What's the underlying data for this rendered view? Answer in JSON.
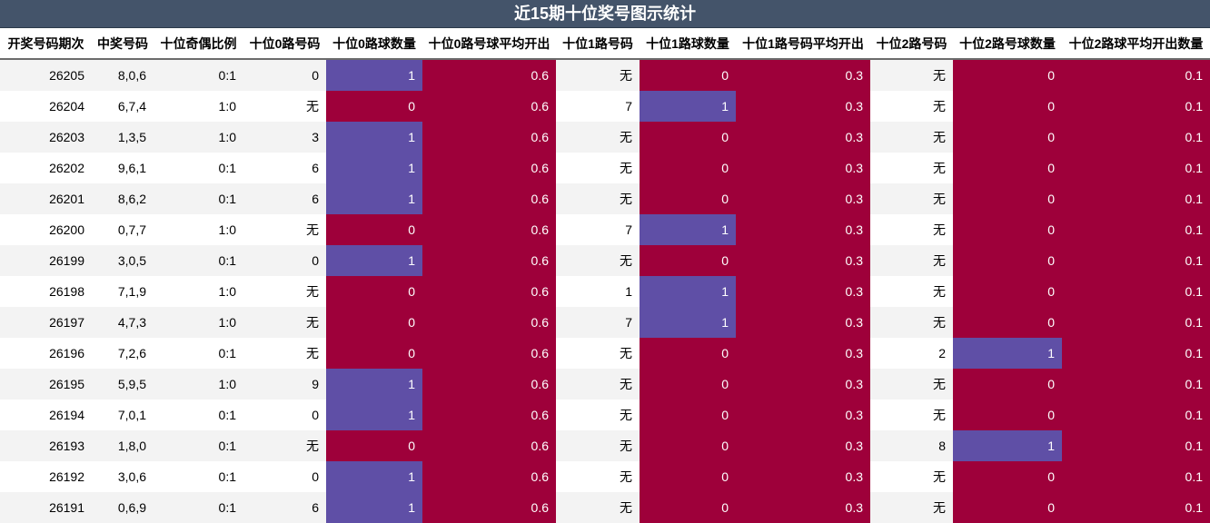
{
  "title": "近15期十位奖号图示统计",
  "headers": [
    "开奖号码期次",
    "中奖号码",
    "十位奇偶比例",
    "十位0路号码",
    "十位0路球数量",
    "十位0路号球平均开出",
    "十位1路号码",
    "十位1路球数量",
    "十位1路号码平均开出",
    "十位2路号码",
    "十位2路号球数量",
    "十位2路球平均开出数量"
  ],
  "rows": [
    [
      "26205",
      "8,0,6",
      "0:1",
      "0",
      "1",
      "0.6",
      "无",
      "0",
      "0.3",
      "无",
      "0",
      "0.1"
    ],
    [
      "26204",
      "6,7,4",
      "1:0",
      "无",
      "0",
      "0.6",
      "7",
      "1",
      "0.3",
      "无",
      "0",
      "0.1"
    ],
    [
      "26203",
      "1,3,5",
      "1:0",
      "3",
      "1",
      "0.6",
      "无",
      "0",
      "0.3",
      "无",
      "0",
      "0.1"
    ],
    [
      "26202",
      "9,6,1",
      "0:1",
      "6",
      "1",
      "0.6",
      "无",
      "0",
      "0.3",
      "无",
      "0",
      "0.1"
    ],
    [
      "26201",
      "8,6,2",
      "0:1",
      "6",
      "1",
      "0.6",
      "无",
      "0",
      "0.3",
      "无",
      "0",
      "0.1"
    ],
    [
      "26200",
      "0,7,7",
      "1:0",
      "无",
      "0",
      "0.6",
      "7",
      "1",
      "0.3",
      "无",
      "0",
      "0.1"
    ],
    [
      "26199",
      "3,0,5",
      "0:1",
      "0",
      "1",
      "0.6",
      "无",
      "0",
      "0.3",
      "无",
      "0",
      "0.1"
    ],
    [
      "26198",
      "7,1,9",
      "1:0",
      "无",
      "0",
      "0.6",
      "1",
      "1",
      "0.3",
      "无",
      "0",
      "0.1"
    ],
    [
      "26197",
      "4,7,3",
      "1:0",
      "无",
      "0",
      "0.6",
      "7",
      "1",
      "0.3",
      "无",
      "0",
      "0.1"
    ],
    [
      "26196",
      "7,2,6",
      "0:1",
      "无",
      "0",
      "0.6",
      "无",
      "0",
      "0.3",
      "2",
      "1",
      "0.1"
    ],
    [
      "26195",
      "5,9,5",
      "1:0",
      "9",
      "1",
      "0.6",
      "无",
      "0",
      "0.3",
      "无",
      "0",
      "0.1"
    ],
    [
      "26194",
      "7,0,1",
      "0:1",
      "0",
      "1",
      "0.6",
      "无",
      "0",
      "0.3",
      "无",
      "0",
      "0.1"
    ],
    [
      "26193",
      "1,8,0",
      "0:1",
      "无",
      "0",
      "0.6",
      "无",
      "0",
      "0.3",
      "8",
      "1",
      "0.1"
    ],
    [
      "26192",
      "3,0,6",
      "0:1",
      "0",
      "1",
      "0.6",
      "无",
      "0",
      "0.3",
      "无",
      "0",
      "0.1"
    ],
    [
      "26191",
      "0,6,9",
      "0:1",
      "6",
      "1",
      "0.6",
      "无",
      "0",
      "0.3",
      "无",
      "0",
      "0.1"
    ]
  ],
  "colors": {
    "title_bg": "#44546a",
    "red": "#9e003a",
    "blue": "#5f4fa6",
    "stripe": "#f3f3f3"
  }
}
